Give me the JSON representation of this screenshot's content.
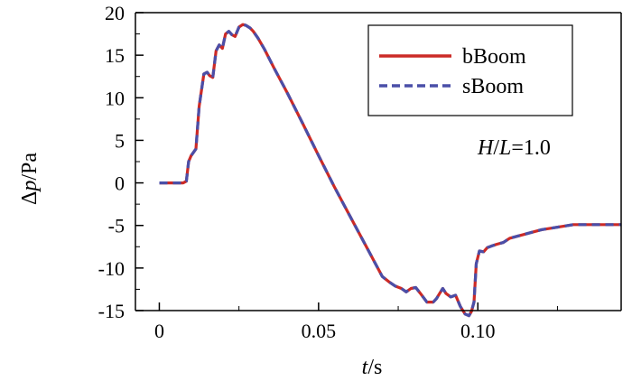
{
  "chart_data": {
    "type": "line",
    "xlabel_var": "t",
    "xlabel_unit": "/s",
    "ylabel_prefix": "Δ",
    "ylabel_var": "p",
    "ylabel_unit": "/Pa",
    "xlim": [
      -0.0075,
      0.145
    ],
    "ylim": [
      -15,
      20
    ],
    "xticks": [
      0,
      0.05,
      0.1
    ],
    "xtick_labels": [
      "0",
      "0.05",
      "0.10"
    ],
    "yticks": [
      -15,
      -10,
      -5,
      0,
      5,
      10,
      15,
      20
    ],
    "ytick_labels": [
      "-15",
      "-10",
      "-5",
      "0",
      "5",
      "10",
      "15",
      "20"
    ],
    "legend_position": "top-right",
    "annotation": {
      "h": "H",
      "sep": "/",
      "l": "L",
      "value": "=1.0"
    },
    "series": [
      {
        "name": "bBoom",
        "color": "#cc2a26",
        "style": "solid",
        "x": [
          0,
          0.0075,
          0.0085,
          0.0092,
          0.01,
          0.0115,
          0.0125,
          0.014,
          0.015,
          0.0158,
          0.0168,
          0.0178,
          0.0188,
          0.0198,
          0.0208,
          0.0218,
          0.0228,
          0.0238,
          0.025,
          0.0262,
          0.0272,
          0.0285,
          0.0295,
          0.031,
          0.033,
          0.036,
          0.04,
          0.045,
          0.05,
          0.055,
          0.06,
          0.065,
          0.07,
          0.072,
          0.074,
          0.076,
          0.0775,
          0.079,
          0.0805,
          0.082,
          0.084,
          0.086,
          0.087,
          0.088,
          0.089,
          0.09,
          0.0915,
          0.093,
          0.0945,
          0.096,
          0.0972,
          0.098,
          0.0988,
          0.0995,
          0.1005,
          0.1018,
          0.103,
          0.1045,
          0.106,
          0.108,
          0.11,
          0.12,
          0.13,
          0.134,
          0.145
        ],
        "y": [
          0,
          0,
          0.2,
          2.5,
          3.2,
          4.0,
          9.0,
          12.8,
          13.0,
          12.6,
          12.4,
          15.5,
          16.2,
          15.8,
          17.5,
          17.8,
          17.4,
          17.2,
          18.3,
          18.6,
          18.5,
          18.2,
          17.8,
          17.0,
          15.7,
          13.5,
          10.7,
          7.0,
          3.2,
          -0.5,
          -4.0,
          -7.5,
          -11.0,
          -11.6,
          -12.1,
          -12.4,
          -12.8,
          -12.4,
          -12.3,
          -13.0,
          -14.0,
          -14.0,
          -13.6,
          -13.0,
          -12.4,
          -13.0,
          -13.4,
          -13.2,
          -14.5,
          -15.4,
          -15.6,
          -15.1,
          -14.0,
          -9.5,
          -8.0,
          -8.1,
          -7.6,
          -7.4,
          -7.2,
          -7.0,
          -6.5,
          -5.5,
          -4.9,
          -4.9,
          -4.9
        ]
      },
      {
        "name": "sBoom",
        "color": "#4a4fa8",
        "style": "dashed",
        "x": [
          0,
          0.0075,
          0.0085,
          0.0092,
          0.01,
          0.0115,
          0.0125,
          0.014,
          0.015,
          0.0158,
          0.0168,
          0.0178,
          0.0188,
          0.0198,
          0.0208,
          0.0218,
          0.0228,
          0.0238,
          0.025,
          0.0262,
          0.0272,
          0.0285,
          0.0295,
          0.031,
          0.033,
          0.036,
          0.04,
          0.045,
          0.05,
          0.055,
          0.06,
          0.065,
          0.07,
          0.072,
          0.074,
          0.076,
          0.0775,
          0.079,
          0.0805,
          0.082,
          0.084,
          0.086,
          0.087,
          0.088,
          0.089,
          0.09,
          0.0915,
          0.093,
          0.0945,
          0.096,
          0.0972,
          0.098,
          0.0988,
          0.0995,
          0.1005,
          0.1018,
          0.103,
          0.1045,
          0.106,
          0.108,
          0.11,
          0.12,
          0.13,
          0.134,
          0.145
        ],
        "y": [
          0,
          0,
          0.2,
          2.5,
          3.2,
          4.0,
          9.0,
          12.8,
          13.0,
          12.6,
          12.4,
          15.5,
          16.2,
          15.8,
          17.5,
          17.8,
          17.4,
          17.2,
          18.3,
          18.6,
          18.5,
          18.2,
          17.8,
          17.0,
          15.7,
          13.5,
          10.7,
          7.0,
          3.2,
          -0.5,
          -4.0,
          -7.5,
          -11.0,
          -11.6,
          -12.1,
          -12.4,
          -12.8,
          -12.4,
          -12.3,
          -13.0,
          -14.0,
          -14.0,
          -13.6,
          -13.0,
          -12.4,
          -13.0,
          -13.4,
          -13.2,
          -14.5,
          -15.4,
          -15.6,
          -15.1,
          -14.0,
          -9.5,
          -8.0,
          -8.1,
          -7.6,
          -7.4,
          -7.2,
          -7.0,
          -6.5,
          -5.5,
          -4.9,
          -4.9,
          -4.9
        ]
      }
    ]
  }
}
